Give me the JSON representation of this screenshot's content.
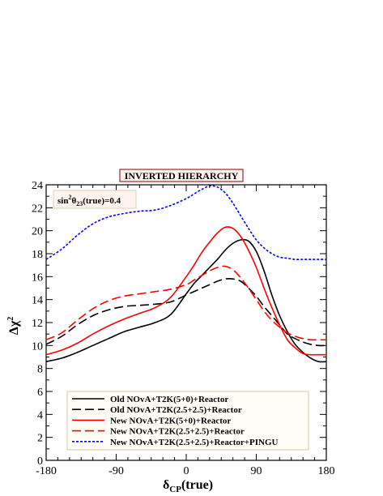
{
  "chart_data": {
    "type": "line",
    "title": "INVERTED HIERARCHY",
    "annotation": {
      "prefix": "sin",
      "sup": "2",
      "theta": "θ",
      "sub": "23",
      "suffix": "(true)=0.4"
    },
    "xlabel": {
      "main": "δ",
      "sub": "CP",
      "rest": "(true)"
    },
    "ylabel": {
      "main": "Δχ",
      "sup": "2"
    },
    "xlim": [
      -180,
      180
    ],
    "ylim": [
      0,
      24
    ],
    "xticks": [
      -180,
      -90,
      0,
      90,
      180
    ],
    "yticks": [
      0,
      2,
      4,
      6,
      8,
      10,
      12,
      14,
      16,
      18,
      20,
      22,
      24
    ],
    "x": [
      -180,
      -160,
      -140,
      -120,
      -100,
      -80,
      -60,
      -40,
      -20,
      0,
      10,
      20,
      30,
      40,
      50,
      60,
      70,
      80,
      90,
      100,
      110,
      120,
      130,
      140,
      150,
      160,
      170,
      180
    ],
    "legend_position": "bottom-center",
    "series": [
      {
        "name": "Old NOvA+T2K(5+0)+Reactor",
        "color": "#000000",
        "dash": "solid",
        "values": [
          8.6,
          8.9,
          9.4,
          10.0,
          10.6,
          11.2,
          11.6,
          12.0,
          12.7,
          14.5,
          15.4,
          16.1,
          16.8,
          17.5,
          18.3,
          18.9,
          19.2,
          19.1,
          18.2,
          16.5,
          14.4,
          12.6,
          11.2,
          10.1,
          9.4,
          8.9,
          8.6,
          8.6
        ]
      },
      {
        "name": "Old NOvA+T2K(2.5+2.5)+Reactor",
        "color": "#000000",
        "dash": "longdash",
        "values": [
          10.1,
          10.8,
          11.8,
          12.6,
          13.1,
          13.4,
          13.5,
          13.6,
          13.8,
          14.4,
          14.7,
          15.0,
          15.3,
          15.6,
          15.8,
          15.8,
          15.6,
          15.0,
          14.3,
          13.4,
          12.6,
          11.8,
          11.0,
          10.6,
          10.3,
          10.1,
          10.0,
          10.0
        ]
      },
      {
        "name": "New NOvA+T2K(5+0)+Reactor",
        "color": "#ff0000",
        "dash": "solid",
        "values": [
          9.2,
          9.6,
          10.2,
          11.0,
          11.7,
          12.3,
          12.8,
          13.3,
          14.2,
          16.0,
          17.0,
          18.1,
          19.0,
          19.8,
          20.3,
          20.2,
          19.5,
          18.3,
          16.8,
          15.0,
          13.3,
          11.8,
          10.5,
          9.8,
          9.3,
          9.2,
          9.2,
          9.2
        ]
      },
      {
        "name": "New NOvA+T2K(2.5+2.5)+Reactor",
        "color": "#ff0000",
        "dash": "longdash",
        "values": [
          10.5,
          11.1,
          12.2,
          13.2,
          13.9,
          14.3,
          14.5,
          14.7,
          14.9,
          15.3,
          15.7,
          16.1,
          16.5,
          16.8,
          16.9,
          16.6,
          15.9,
          15.0,
          14.0,
          13.0,
          12.2,
          11.6,
          11.1,
          10.8,
          10.6,
          10.5,
          10.5,
          10.5
        ]
      },
      {
        "name": "New NOvA+T2K(2.5+2.5)+Reactor+PINGU",
        "color": "#0000ff",
        "dash": "dotted",
        "values": [
          17.5,
          18.4,
          19.6,
          20.6,
          21.2,
          21.5,
          21.7,
          21.8,
          22.2,
          22.8,
          23.2,
          23.6,
          23.9,
          23.8,
          23.3,
          22.4,
          21.3,
          20.2,
          19.2,
          18.5,
          18.0,
          17.7,
          17.6,
          17.5,
          17.5,
          17.5,
          17.5,
          17.5
        ]
      }
    ]
  }
}
